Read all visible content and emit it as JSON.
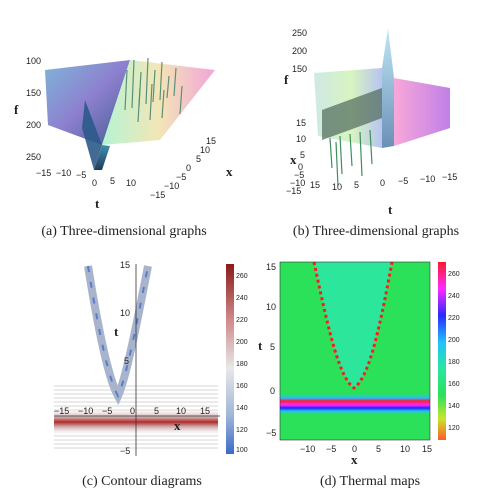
{
  "captions": {
    "a": "(a)  Three-dimensional graphs",
    "b": "(b)  Three-dimensional graphs",
    "c": "(c)  Contour diagrams",
    "d": "(d)  Thermal maps"
  },
  "panel_a": {
    "f_label": "f",
    "t_label": "t",
    "x_label": "x",
    "f_ticks": [
      "100",
      "150",
      "200",
      "250"
    ],
    "t_ticks": [
      "−15",
      "−10",
      "−5",
      "0",
      "5",
      "10"
    ],
    "x_ticks": [
      "15",
      "10",
      "5",
      "0",
      "−5",
      "−10",
      "−15"
    ]
  },
  "panel_b": {
    "f_label": "f",
    "t_label": "t",
    "x_label": "x",
    "f_ticks": [
      "250",
      "200",
      "150"
    ],
    "t_ticks": [
      "15",
      "10",
      "5",
      "0",
      "−5",
      "−10",
      "−15"
    ],
    "x_ticks": [
      "15",
      "10",
      "5",
      "0",
      "−5",
      "−10",
      "−15"
    ]
  },
  "panel_c": {
    "t_label": "t",
    "x_label": "x",
    "t_ticks": [
      "15",
      "10",
      "5",
      "−5"
    ],
    "x_ticks": [
      "−15",
      "−10",
      "−5",
      "0",
      "5",
      "10",
      "15"
    ],
    "colorbar_ticks": [
      "260",
      "240",
      "220",
      "200",
      "180",
      "160",
      "140",
      "120",
      "100"
    ]
  },
  "panel_d": {
    "t_label": "t",
    "x_label": "x",
    "t_ticks": [
      "15",
      "10",
      "5",
      "0",
      "−5"
    ],
    "x_ticks": [
      "−10",
      "−5",
      "0",
      "5",
      "10",
      "15"
    ],
    "colorbar_ticks": [
      "260",
      "240",
      "220",
      "200",
      "180",
      "160",
      "140",
      "120"
    ]
  },
  "colors": {
    "contour_line": "#7f98c8",
    "contour_band": "#b52a2a",
    "thermal_bg": "#2ce15a",
    "thermal_parabola": "#ff1a1a",
    "thermal_inner": "#2ce69b",
    "band_red": "#ff2030",
    "band_blue": "#2020ff"
  }
}
